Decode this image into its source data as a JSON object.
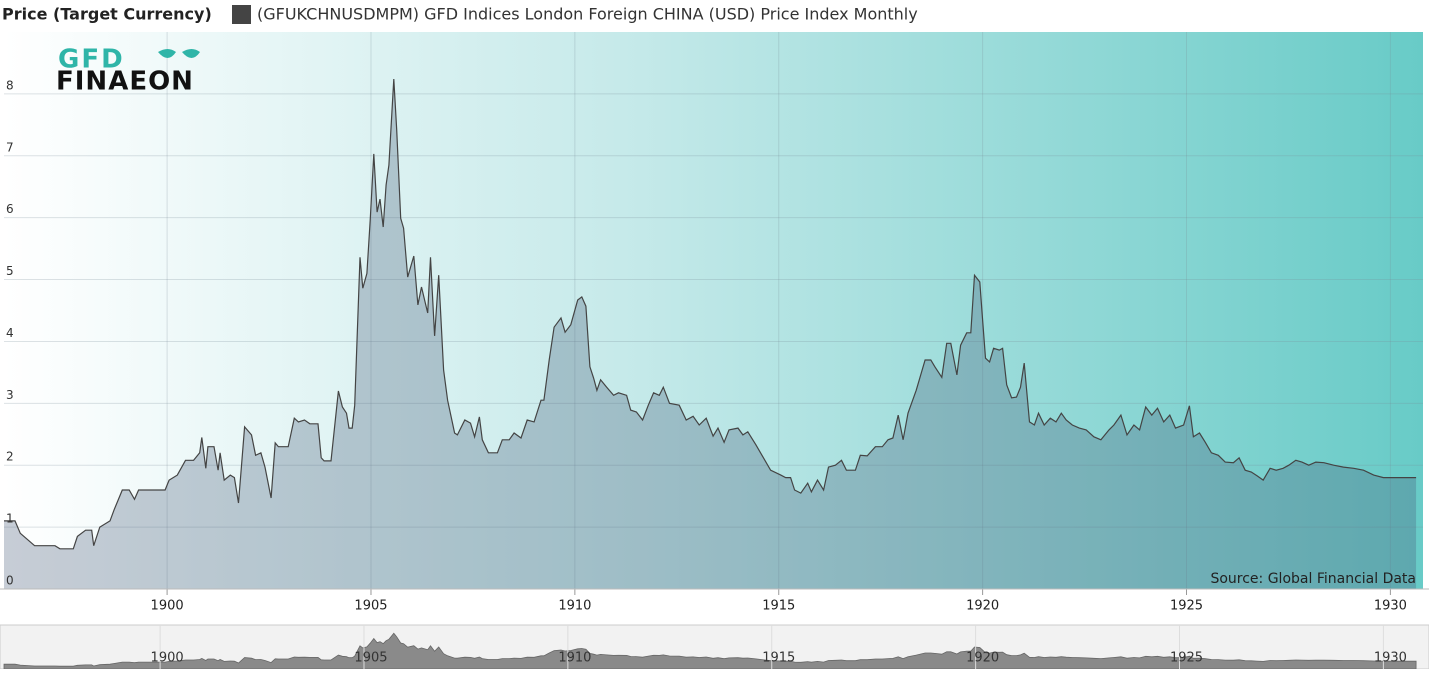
{
  "chart_data": {
    "type": "area",
    "ylabel": "Price (Target Currency)",
    "logo": [
      "GFD",
      "FINAEON"
    ],
    "source": "Source: Global Financial Data",
    "grid": true,
    "xlim": [
      1896,
      1930.8
    ],
    "xticks": [
      1900,
      1905,
      1910,
      1915,
      1920,
      1925,
      1930
    ],
    "ylim": [
      0,
      9
    ],
    "yticks": [
      0,
      1,
      2,
      3,
      4,
      5,
      6,
      7,
      8
    ],
    "x": [
      1896.0,
      1896.27,
      1896.4,
      1896.75,
      1897.25,
      1897.37,
      1897.7,
      1897.8,
      1898.0,
      1898.15,
      1898.2,
      1898.35,
      1898.6,
      1898.7,
      1898.9,
      1899.07,
      1899.2,
      1899.3,
      1899.95,
      1900.05,
      1900.25,
      1900.45,
      1900.65,
      1900.8,
      1900.85,
      1900.95,
      1901.0,
      1901.15,
      1901.25,
      1901.3,
      1901.4,
      1901.55,
      1901.65,
      1901.75,
      1901.9,
      1902.07,
      1902.17,
      1902.3,
      1902.4,
      1902.55,
      1902.65,
      1902.73,
      1902.97,
      1903.12,
      1903.22,
      1903.37,
      1903.5,
      1903.7,
      1903.78,
      1903.85,
      1904.02,
      1904.2,
      1904.3,
      1904.4,
      1904.46,
      1904.54,
      1904.6,
      1904.73,
      1904.8,
      1904.9,
      1904.98,
      1905.07,
      1905.15,
      1905.22,
      1905.3,
      1905.37,
      1905.44,
      1905.56,
      1905.63,
      1905.73,
      1905.8,
      1905.9,
      1906.05,
      1906.15,
      1906.24,
      1906.39,
      1906.46,
      1906.56,
      1906.66,
      1906.78,
      1906.88,
      1907.05,
      1907.12,
      1907.3,
      1907.44,
      1907.54,
      1907.66,
      1907.73,
      1907.88,
      1908.1,
      1908.22,
      1908.39,
      1908.51,
      1908.68,
      1908.83,
      1909.0,
      1909.17,
      1909.24,
      1909.37,
      1909.49,
      1909.66,
      1909.76,
      1909.9,
      1910.07,
      1910.17,
      1910.27,
      1910.37,
      1910.46,
      1910.54,
      1910.63,
      1910.78,
      1910.95,
      1911.07,
      1911.27,
      1911.37,
      1911.51,
      1911.66,
      1911.8,
      1911.93,
      1912.07,
      1912.17,
      1912.32,
      1912.56,
      1912.73,
      1912.9,
      1913.05,
      1913.22,
      1913.39,
      1913.51,
      1913.66,
      1913.78,
      1914.0,
      1914.12,
      1914.24,
      1914.44,
      1914.8,
      1915.05,
      1915.17,
      1915.29,
      1915.39,
      1915.54,
      1915.71,
      1915.8,
      1915.95,
      1916.1,
      1916.22,
      1916.39,
      1916.54,
      1916.66,
      1916.88,
      1917.0,
      1917.17,
      1917.37,
      1917.54,
      1917.68,
      1917.8,
      1917.93,
      1918.05,
      1918.17,
      1918.37,
      1918.59,
      1918.73,
      1918.83,
      1919.0,
      1919.12,
      1919.22,
      1919.37,
      1919.46,
      1919.61,
      1919.71,
      1919.8,
      1919.93,
      1920.0,
      1920.07,
      1920.17,
      1920.27,
      1920.41,
      1920.49,
      1920.59,
      1920.71,
      1920.83,
      1920.93,
      1921.02,
      1921.15,
      1921.27,
      1921.37,
      1921.51,
      1921.66,
      1921.8,
      1921.93,
      1922.05,
      1922.2,
      1922.37,
      1922.54,
      1922.73,
      1922.9,
      1923.1,
      1923.22,
      1923.39,
      1923.54,
      1923.71,
      1923.85,
      1924.0,
      1924.15,
      1924.29,
      1924.44,
      1924.59,
      1924.73,
      1924.93,
      1925.07,
      1925.17,
      1925.32,
      1925.46,
      1925.61,
      1925.78,
      1925.95,
      1926.15,
      1926.29,
      1926.44,
      1926.59,
      1926.73,
      1926.88,
      1927.05,
      1927.2,
      1927.37,
      1927.51,
      1927.68,
      1927.83,
      1928.0,
      1928.17,
      1928.37,
      1928.61,
      1928.85,
      1929.1,
      1929.34,
      1929.59,
      1929.83,
      1930.63
    ],
    "series": [
      {
        "name": "(GFUKCHNUSDMPM) GFD Indices London Foreign CHINA (USD) Price Index Monthly",
        "color": "#444444",
        "values": [
          1.1,
          1.1,
          0.9,
          0.7,
          0.7,
          0.65,
          0.65,
          0.85,
          0.95,
          0.95,
          0.7,
          1.0,
          1.1,
          1.28,
          1.6,
          1.6,
          1.45,
          1.6,
          1.6,
          1.76,
          1.84,
          2.08,
          2.08,
          2.2,
          2.45,
          1.95,
          2.3,
          2.3,
          1.92,
          2.2,
          1.76,
          1.84,
          1.8,
          1.39,
          2.62,
          2.49,
          2.16,
          2.2,
          1.97,
          1.47,
          2.36,
          2.3,
          2.3,
          2.76,
          2.7,
          2.73,
          2.67,
          2.67,
          2.12,
          2.07,
          2.07,
          3.2,
          2.94,
          2.84,
          2.6,
          2.6,
          2.97,
          5.36,
          4.86,
          5.1,
          5.96,
          7.03,
          6.09,
          6.3,
          5.85,
          6.53,
          6.85,
          8.24,
          7.42,
          5.99,
          5.83,
          5.04,
          5.38,
          4.59,
          4.88,
          4.46,
          5.36,
          4.09,
          5.07,
          3.54,
          3.05,
          2.52,
          2.49,
          2.73,
          2.68,
          2.46,
          2.78,
          2.41,
          2.2,
          2.2,
          2.41,
          2.41,
          2.52,
          2.44,
          2.73,
          2.7,
          3.05,
          3.05,
          3.7,
          4.23,
          4.38,
          4.15,
          4.27,
          4.67,
          4.72,
          4.57,
          3.59,
          3.41,
          3.21,
          3.38,
          3.26,
          3.13,
          3.17,
          3.13,
          2.89,
          2.86,
          2.73,
          2.97,
          3.17,
          3.13,
          3.26,
          3.0,
          2.97,
          2.73,
          2.79,
          2.65,
          2.76,
          2.47,
          2.6,
          2.37,
          2.57,
          2.6,
          2.49,
          2.54,
          2.33,
          1.92,
          1.84,
          1.8,
          1.8,
          1.6,
          1.55,
          1.71,
          1.57,
          1.76,
          1.6,
          1.97,
          2.0,
          2.08,
          1.92,
          1.92,
          2.16,
          2.15,
          2.3,
          2.3,
          2.41,
          2.44,
          2.81,
          2.41,
          2.84,
          3.21,
          3.7,
          3.7,
          3.59,
          3.42,
          3.97,
          3.97,
          3.46,
          3.94,
          4.14,
          4.14,
          5.07,
          4.96,
          4.35,
          3.73,
          3.67,
          3.89,
          3.86,
          3.89,
          3.3,
          3.09,
          3.1,
          3.26,
          3.65,
          2.7,
          2.65,
          2.84,
          2.65,
          2.76,
          2.7,
          2.84,
          2.73,
          2.65,
          2.6,
          2.57,
          2.46,
          2.41,
          2.57,
          2.65,
          2.81,
          2.49,
          2.65,
          2.57,
          2.94,
          2.81,
          2.92,
          2.7,
          2.81,
          2.6,
          2.65,
          2.96,
          2.46,
          2.52,
          2.37,
          2.2,
          2.16,
          2.05,
          2.04,
          2.12,
          1.92,
          1.89,
          1.83,
          1.76,
          1.95,
          1.92,
          1.95,
          2.0,
          2.08,
          2.05,
          2.0,
          2.05,
          2.04,
          2.0,
          1.97,
          1.95,
          1.92,
          1.84,
          1.8,
          1.8
        ]
      }
    ]
  }
}
